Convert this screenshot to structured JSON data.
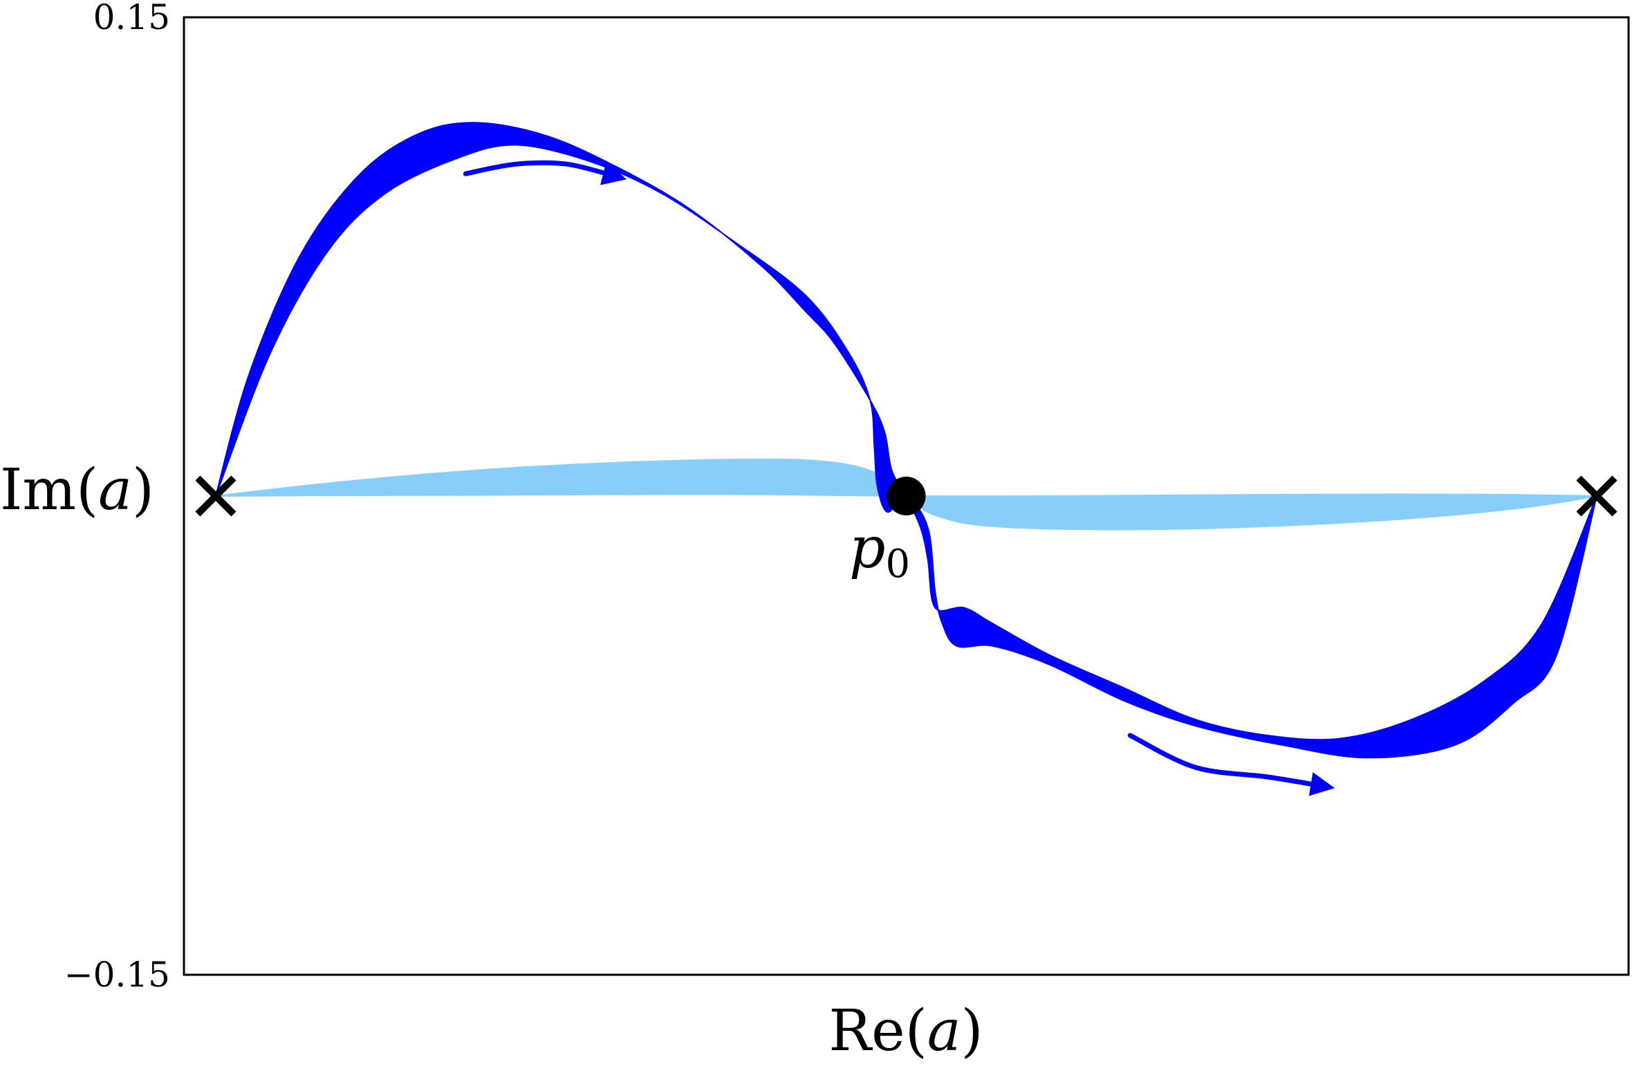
{
  "chart_data": {
    "type": "line",
    "title": "",
    "xlabel_pre": "Re(",
    "xlabel_var": "a",
    "xlabel_post": ")",
    "ylabel_pre": "Im(",
    "ylabel_var": "a",
    "ylabel_post": ")",
    "xticks": [],
    "yticks": [
      "0.15",
      "−0.15"
    ],
    "xlim": [
      0,
      1
    ],
    "ylim": [
      -0.15,
      0.15
    ],
    "grid": false,
    "legend": "none",
    "colors": {
      "dark_band": "#0000ff",
      "light_band": "#87cefa",
      "markers": "#000000"
    },
    "special_points": {
      "left_endpoint": {
        "x": 0.022,
        "y": 0.0,
        "marker": "x"
      },
      "right_endpoint": {
        "x": 0.978,
        "y": 0.0,
        "marker": "x"
      },
      "p0": {
        "x": 0.5,
        "y": 0.0,
        "marker": "filled-circle",
        "label_base": "p",
        "label_sub": "0"
      }
    },
    "series": [
      {
        "band": "dark",
        "outer": [
          [
            0.022,
            0.0
          ],
          [
            0.045,
            0.038
          ],
          [
            0.08,
            0.075
          ],
          [
            0.12,
            0.1
          ],
          [
            0.16,
            0.113
          ],
          [
            0.2,
            0.117
          ],
          [
            0.25,
            0.113
          ],
          [
            0.3,
            0.103
          ],
          [
            0.35,
            0.09
          ],
          [
            0.4,
            0.072
          ],
          [
            0.43,
            0.058
          ],
          [
            0.45,
            0.048
          ],
          [
            0.475,
            0.03
          ],
          [
            0.485,
            0.02
          ],
          [
            0.49,
            0.008
          ],
          [
            0.5,
            0.0
          ],
          [
            0.51,
            -0.01
          ],
          [
            0.515,
            -0.02
          ],
          [
            0.52,
            -0.035
          ],
          [
            0.54,
            -0.035
          ],
          [
            0.56,
            -0.04
          ],
          [
            0.6,
            -0.05
          ],
          [
            0.65,
            -0.06
          ],
          [
            0.7,
            -0.07
          ],
          [
            0.75,
            -0.075
          ],
          [
            0.8,
            -0.076
          ],
          [
            0.85,
            -0.07
          ],
          [
            0.9,
            -0.058
          ],
          [
            0.94,
            -0.04
          ],
          [
            0.978,
            0.0
          ]
        ],
        "inner": [
          [
            0.978,
            0.0
          ],
          [
            0.95,
            -0.05
          ],
          [
            0.92,
            -0.065
          ],
          [
            0.88,
            -0.078
          ],
          [
            0.82,
            -0.082
          ],
          [
            0.76,
            -0.078
          ],
          [
            0.7,
            -0.072
          ],
          [
            0.65,
            -0.064
          ],
          [
            0.6,
            -0.053
          ],
          [
            0.56,
            -0.047
          ],
          [
            0.535,
            -0.047
          ],
          [
            0.525,
            -0.04
          ],
          [
            0.52,
            -0.03
          ],
          [
            0.515,
            -0.01
          ],
          [
            0.5,
            0.0
          ],
          [
            0.487,
            -0.005
          ],
          [
            0.48,
            0.003
          ],
          [
            0.478,
            0.015
          ],
          [
            0.475,
            0.03
          ],
          [
            0.46,
            0.045
          ],
          [
            0.43,
            0.063
          ],
          [
            0.38,
            0.08
          ],
          [
            0.33,
            0.095
          ],
          [
            0.28,
            0.105
          ],
          [
            0.23,
            0.11
          ],
          [
            0.19,
            0.106
          ],
          [
            0.14,
            0.095
          ],
          [
            0.1,
            0.077
          ],
          [
            0.06,
            0.045
          ],
          [
            0.022,
            0.0
          ]
        ]
      },
      {
        "band": "light",
        "outer": [
          [
            0.022,
            0.0
          ],
          [
            0.1,
            0.004
          ],
          [
            0.2,
            0.008
          ],
          [
            0.3,
            0.0105
          ],
          [
            0.4,
            0.0115
          ],
          [
            0.45,
            0.0105
          ],
          [
            0.48,
            0.007
          ],
          [
            0.5,
            0.0
          ],
          [
            0.52,
            -0.006
          ],
          [
            0.56,
            -0.0095
          ],
          [
            0.65,
            -0.0105
          ],
          [
            0.75,
            -0.0095
          ],
          [
            0.85,
            -0.007
          ],
          [
            0.93,
            -0.0035
          ],
          [
            0.978,
            0.0
          ]
        ],
        "inner": [
          [
            0.978,
            0.0
          ],
          [
            0.9,
            0.0005
          ],
          [
            0.8,
            0.0005
          ],
          [
            0.7,
            0.0003
          ],
          [
            0.6,
            0.0
          ],
          [
            0.5,
            0.0
          ],
          [
            0.4,
            0.0005
          ],
          [
            0.3,
            0.0005
          ],
          [
            0.2,
            0.0003
          ],
          [
            0.1,
            0.0002
          ],
          [
            0.022,
            0.0
          ]
        ]
      }
    ],
    "annotations": [
      {
        "type": "arrow",
        "points": [
          [
            0.195,
            0.101
          ],
          [
            0.23,
            0.104
          ],
          [
            0.265,
            0.104
          ],
          [
            0.3,
            0.1
          ]
        ]
      },
      {
        "type": "arrow",
        "points": [
          [
            0.655,
            -0.075
          ],
          [
            0.7,
            -0.085
          ],
          [
            0.75,
            -0.088
          ],
          [
            0.79,
            -0.091
          ]
        ]
      }
    ]
  }
}
